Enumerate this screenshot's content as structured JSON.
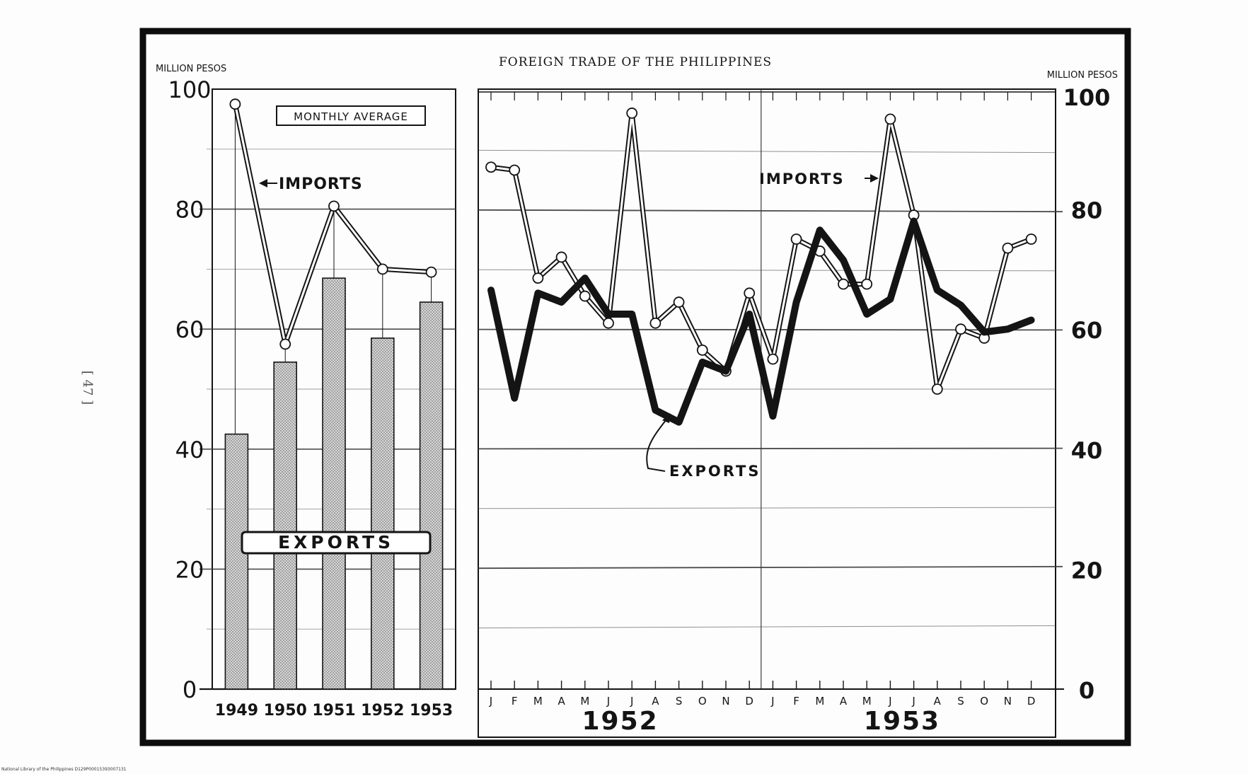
{
  "page": {
    "title": "FOREIGN TRADE OF THE PHILIPPINES",
    "page_number": "[ 47 ]",
    "footer": "National Library of the Philippines   D129P00015393007131"
  },
  "left_panel": {
    "unit_label": "MILLION PESOS",
    "box_label": "MONTHLY AVERAGE",
    "imports_label": "IMPORTS",
    "exports_label": "EXPORTS",
    "y_ticks": [
      "0",
      "20",
      "40",
      "60",
      "80",
      "100"
    ]
  },
  "right_panel": {
    "unit_label": "MILLION PESOS",
    "imports_label": "IMPORTS",
    "exports_label": "EXPORTS",
    "y_ticks": [
      "0",
      "20",
      "40",
      "60",
      "80",
      "100"
    ],
    "month_labels": [
      "J",
      "F",
      "M",
      "A",
      "M",
      "J",
      "J",
      "A",
      "S",
      "O",
      "N",
      "D",
      "J",
      "F",
      "M",
      "A",
      "M",
      "J",
      "J",
      "A",
      "S",
      "O",
      "N",
      "D"
    ],
    "year_labels": [
      "1952",
      "1953"
    ]
  },
  "colors": {
    "ink": "#141414",
    "frame": "#0d0d0d",
    "grid": "#3a3a3a",
    "bar_fill": "#9c9c9c",
    "imports_fill": "#ffffff"
  },
  "chart_data": [
    {
      "type": "bar",
      "title": "MONTHLY AVERAGE",
      "ylabel": "MILLION PESOS",
      "ylim": [
        0,
        100
      ],
      "categories": [
        "1949",
        "1950",
        "1951",
        "1952",
        "1953"
      ],
      "series": [
        {
          "name": "EXPORTS",
          "type": "bar",
          "values": [
            42.5,
            54.5,
            68.5,
            58.5,
            64.5
          ]
        },
        {
          "name": "IMPORTS",
          "type": "line",
          "values": [
            97.5,
            57.5,
            80.5,
            70,
            69.5
          ]
        }
      ],
      "grid": true
    },
    {
      "type": "line",
      "ylabel": "MILLION PESOS",
      "ylim": [
        0,
        100
      ],
      "x": [
        "J 1952",
        "F 1952",
        "M 1952",
        "A 1952",
        "M 1952",
        "J 1952",
        "J 1952",
        "A 1952",
        "S 1952",
        "O 1952",
        "N 1952",
        "D 1952",
        "J 1953",
        "F 1953",
        "M 1953",
        "A 1953",
        "M 1953",
        "J 1953",
        "J 1953",
        "A 1953",
        "S 1953",
        "O 1953",
        "N 1953",
        "D 1953"
      ],
      "series": [
        {
          "name": "IMPORTS",
          "values": [
            87,
            86.5,
            68.5,
            72,
            65.5,
            61,
            96,
            61,
            64.5,
            56.5,
            53,
            66,
            55,
            75,
            73,
            67.5,
            67.5,
            95,
            79,
            50,
            60,
            58.5,
            73.5,
            75
          ]
        },
        {
          "name": "EXPORTS",
          "values": [
            66.5,
            48.5,
            66,
            64.5,
            68.5,
            62.5,
            62.5,
            46.5,
            44.5,
            54.5,
            53,
            62.5,
            45.5,
            64.5,
            76.5,
            71.5,
            62.5,
            65,
            78,
            66.5,
            64,
            59.5,
            60,
            61.5
          ]
        }
      ],
      "grid": true
    }
  ]
}
